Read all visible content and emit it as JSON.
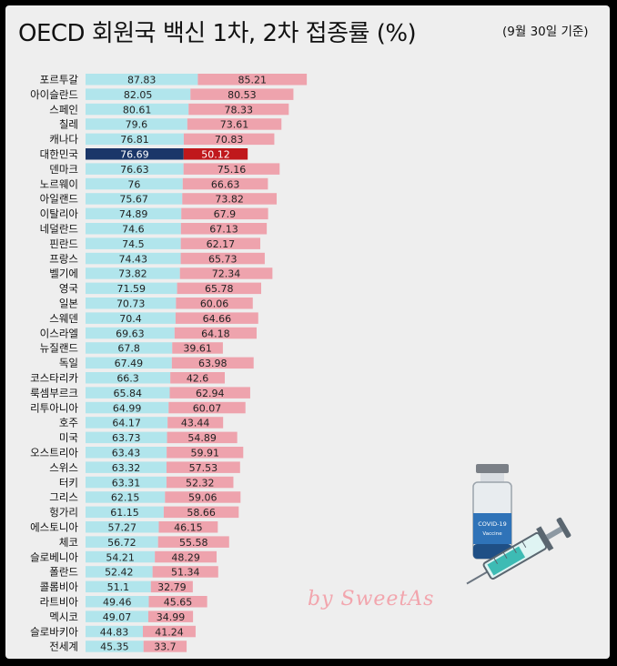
{
  "title": "OECD 회원국 백신 1차, 2차 접종률 (%)",
  "subtitle": "(9월 30일 기준)",
  "watermark": "by SweetAs",
  "vial_label": "COVID-19",
  "vial_sublabel": "Vaccine",
  "colors": {
    "first_dose": "#b1e5ec",
    "second_dose": "#eea3ad",
    "first_dose_highlight": "#1a3669",
    "second_dose_highlight": "#c0181c"
  },
  "chart_data": {
    "type": "bar",
    "orientation": "horizontal",
    "stacked": true,
    "highlight": "대한민국",
    "categories": [
      "포르투갈",
      "아이슬란드",
      "스페인",
      "칠레",
      "캐나다",
      "대한민국",
      "덴마크",
      "노르웨이",
      "아일랜드",
      "이탈리아",
      "네덜란드",
      "핀란드",
      "프랑스",
      "벨기에",
      "영국",
      "일본",
      "스웨덴",
      "이스라엘",
      "뉴질랜드",
      "독일",
      "코스타리카",
      "룩셈부르크",
      "리투아니아",
      "호주",
      "미국",
      "오스트리아",
      "스위스",
      "터키",
      "그리스",
      "헝가리",
      "에스토니아",
      "체코",
      "슬로베니아",
      "폴란드",
      "콜롬비아",
      "라트비아",
      "멕시코",
      "슬로바키아",
      "전세계"
    ],
    "series": [
      {
        "values": [
          87.83,
          82.05,
          80.61,
          79.6,
          76.81,
          76.69,
          76.63,
          76,
          75.67,
          74.89,
          74.6,
          74.5,
          74.43,
          73.82,
          71.59,
          70.73,
          70.4,
          69.63,
          67.8,
          67.49,
          66.3,
          65.84,
          64.99,
          64.17,
          63.73,
          63.43,
          63.32,
          63.31,
          62.15,
          61.15,
          57.27,
          56.72,
          54.21,
          52.42,
          51.1,
          49.46,
          49.07,
          44.83,
          45.35
        ]
      },
      {
        "values": [
          85.21,
          80.53,
          78.33,
          73.61,
          70.83,
          50.12,
          75.16,
          66.63,
          73.82,
          67.9,
          67.13,
          62.17,
          65.73,
          72.34,
          65.78,
          60.06,
          64.66,
          64.18,
          39.61,
          63.98,
          42.6,
          62.94,
          60.07,
          43.44,
          54.89,
          59.91,
          57.53,
          52.32,
          59.06,
          58.66,
          46.15,
          55.58,
          48.29,
          51.34,
          32.79,
          45.65,
          34.99,
          41.24,
          33.7
        ]
      }
    ]
  }
}
